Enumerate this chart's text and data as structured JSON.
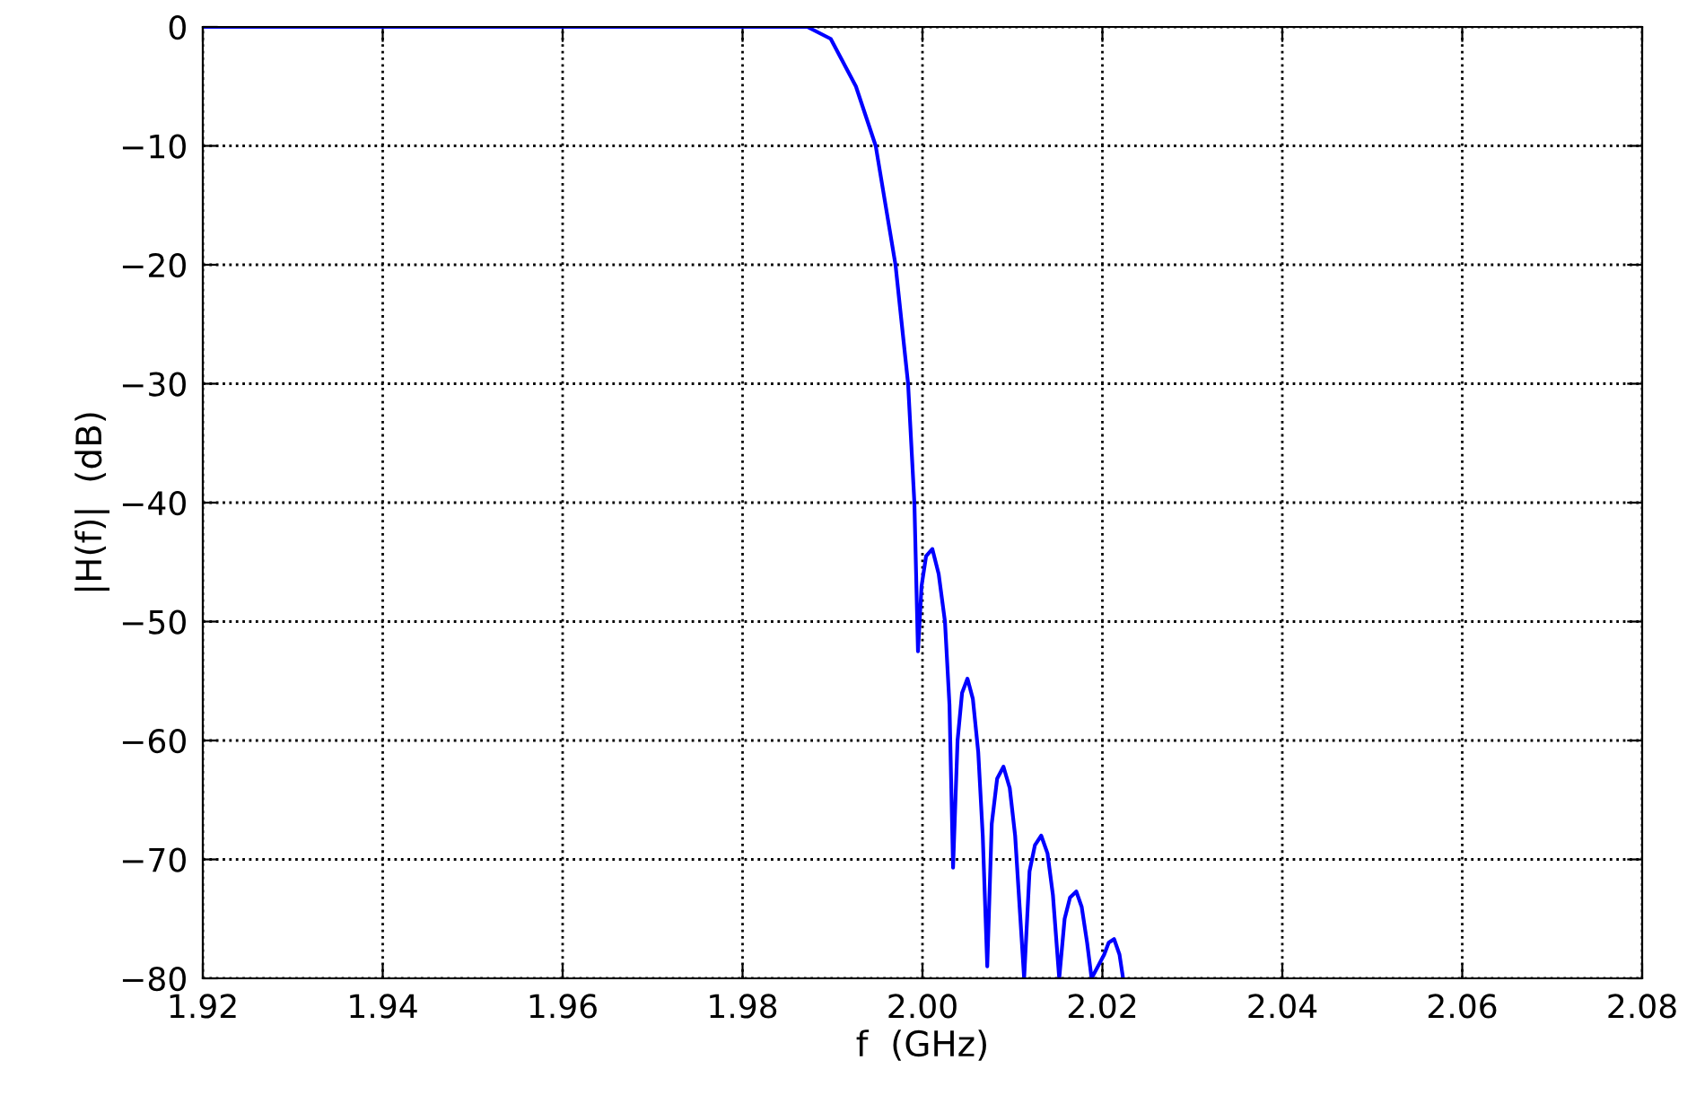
{
  "chart_data": {
    "type": "line",
    "xlabel": "f  (GHz)",
    "ylabel": "|H(f)|  (dB)",
    "xlim": [
      1.92,
      2.08
    ],
    "xticks": [
      {
        "value": 1.92,
        "label": "1.92"
      },
      {
        "value": 1.94,
        "label": "1.94"
      },
      {
        "value": 1.96,
        "label": "1.96"
      },
      {
        "value": 1.98,
        "label": "1.98"
      },
      {
        "value": 2.0,
        "label": "2.00"
      },
      {
        "value": 2.02,
        "label": "2.02"
      },
      {
        "value": 2.04,
        "label": "2.04"
      },
      {
        "value": 2.06,
        "label": "2.06"
      },
      {
        "value": 2.08,
        "label": "2.08"
      }
    ],
    "ylim": [
      -80,
      0
    ],
    "yticks": [
      {
        "value": -80,
        "label": "−80"
      },
      {
        "value": -70,
        "label": "−70"
      },
      {
        "value": -60,
        "label": "−60"
      },
      {
        "value": -50,
        "label": "−50"
      },
      {
        "value": -40,
        "label": "−40"
      },
      {
        "value": -30,
        "label": "−30"
      },
      {
        "value": -20,
        "label": "−20"
      },
      {
        "value": -10,
        "label": "−10"
      },
      0
    ],
    "grid": true,
    "marker": "none",
    "line_style": "solid",
    "series": [
      {
        "color": "#0000ff",
        "x": [
          1.92,
          1.98,
          1.9872,
          1.9898,
          1.9926,
          1.9948,
          1.997,
          1.9984,
          1.9991,
          1.9995,
          1.9999,
          2.0004,
          2.0011,
          2.0018,
          2.0025,
          2.003,
          2.0034,
          2.0039,
          2.0044,
          2.005,
          2.0056,
          2.0062,
          2.0067,
          2.0072,
          2.0077,
          2.0083,
          2.009,
          2.0097,
          2.0103,
          2.0108,
          2.0113,
          2.0119,
          2.0125,
          2.0132,
          2.0139,
          2.0145,
          2.0152,
          2.0158,
          2.0164,
          2.0171,
          2.0177,
          2.0183,
          2.0188,
          2.0202,
          2.0207,
          2.0213,
          2.0219,
          2.0223
        ],
        "values": [
          0,
          0,
          0,
          -1,
          -5,
          -10,
          -20,
          -30,
          -40,
          -52.5,
          -47,
          -44.5,
          -43.9,
          -46,
          -50,
          -57,
          -70.7,
          -60,
          -56,
          -54.8,
          -56.5,
          -61,
          -68,
          -79,
          -67,
          -63.2,
          -62.2,
          -64,
          -68,
          -74,
          -80,
          -71,
          -68.8,
          -68,
          -69.5,
          -73,
          -80,
          -75,
          -73.2,
          -72.7,
          -74,
          -77,
          -80,
          -78,
          -77,
          -76.7,
          -78,
          -80
        ]
      }
    ]
  }
}
